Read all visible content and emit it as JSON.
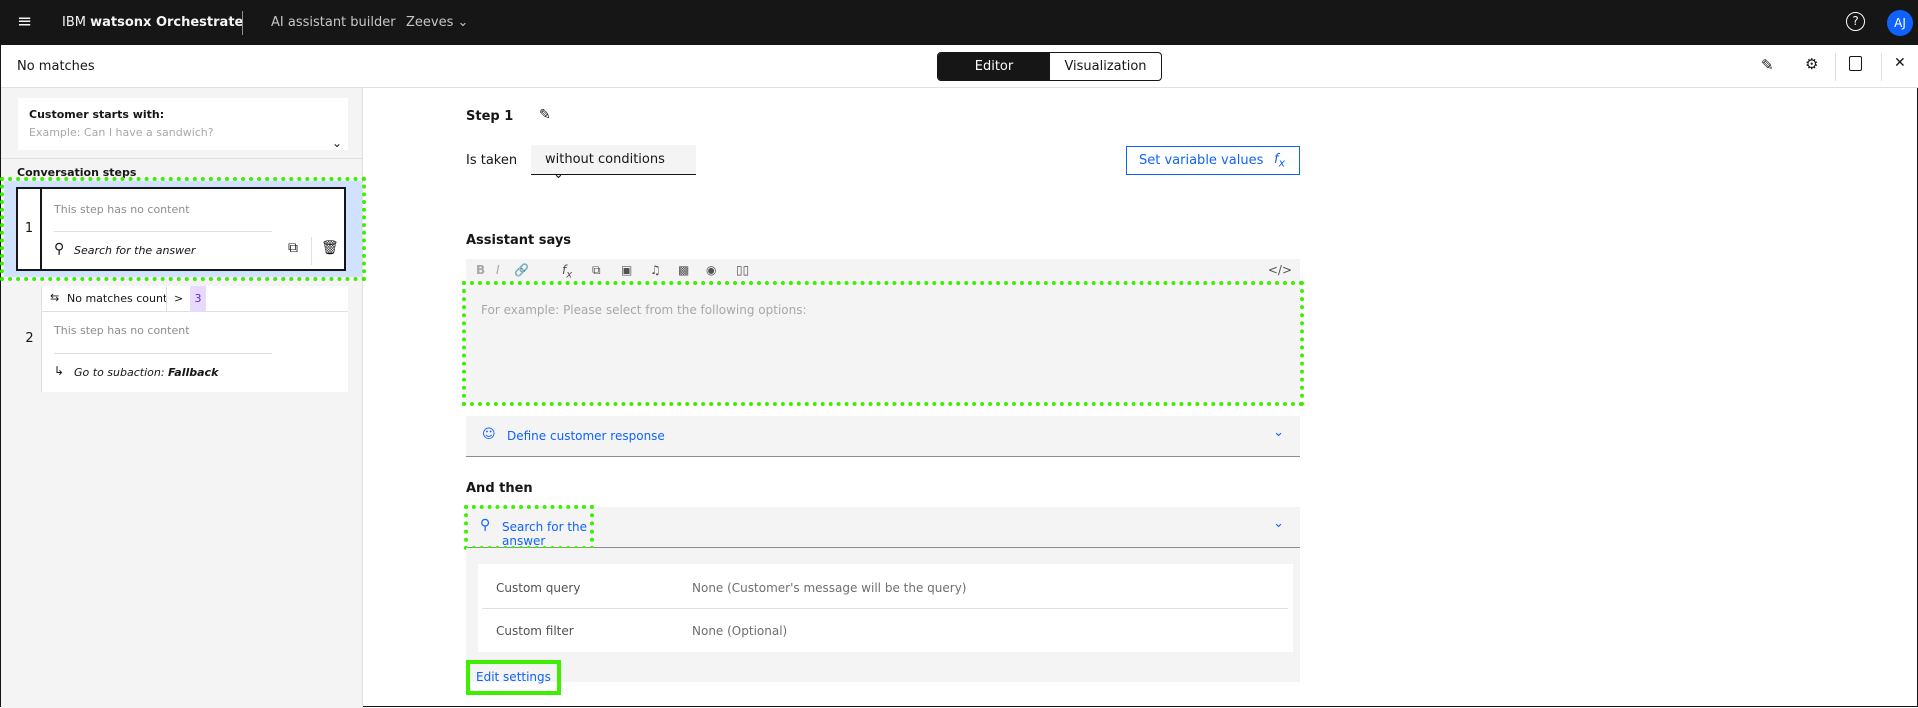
{
  "header": {
    "product_prefix": "IBM ",
    "product": "watsonx Orchestrate",
    "section": "AI assistant builder",
    "assistant": "Zeeves",
    "avatar": "AJ",
    "icons": [
      "menu-icon",
      "chevron-down-icon",
      "help-icon"
    ]
  },
  "subheader": {
    "title": "No matches",
    "tabs": [
      {
        "label": "Editor",
        "selected": true
      },
      {
        "label": "Visualization",
        "selected": false
      }
    ],
    "icons": [
      "edit-icon",
      "settings-icon",
      "save-icon",
      "close-icon"
    ]
  },
  "sidebar": {
    "customer_starts": {
      "label": "Customer starts with:",
      "placeholder": "Example: Can I have a sandwich?"
    },
    "steps_title": "Conversation steps",
    "steps": [
      {
        "number": "1",
        "content": "This step has no content",
        "action": "Search for the answer",
        "selected": true
      },
      {
        "number": "2",
        "condition_label": "No matches count",
        "operator": ">",
        "value": "3",
        "content": "This step has no content",
        "action_prefix": "Go to subaction: ",
        "action_target": "Fallback"
      }
    ]
  },
  "main": {
    "step_title": "Step 1",
    "is_taken_label": "Is taken",
    "condition": "without conditions",
    "set_variable": "Set variable values",
    "assistant_says": "Assistant says",
    "toolbar": [
      "B",
      "I",
      "link",
      "fx",
      "variable",
      "image",
      "audio",
      "video",
      "iframe",
      "columns",
      "code"
    ],
    "editor_placeholder": "For example: Please select from the following options:",
    "define_response": "Define customer response",
    "and_then": "And then",
    "and_then_action": "Search for the answer",
    "settings": [
      {
        "label": "Custom query",
        "value": "None (Customer's message will be the query)"
      },
      {
        "label": "Custom filter",
        "value": "None (Optional)"
      }
    ],
    "edit_settings": "Edit settings"
  },
  "colors": {
    "accent": "#0f62fe",
    "avatar": "#0f62fe",
    "selected_step": "#d0e2ff",
    "annotation": "#3cf000",
    "badge": "#e8daff"
  }
}
